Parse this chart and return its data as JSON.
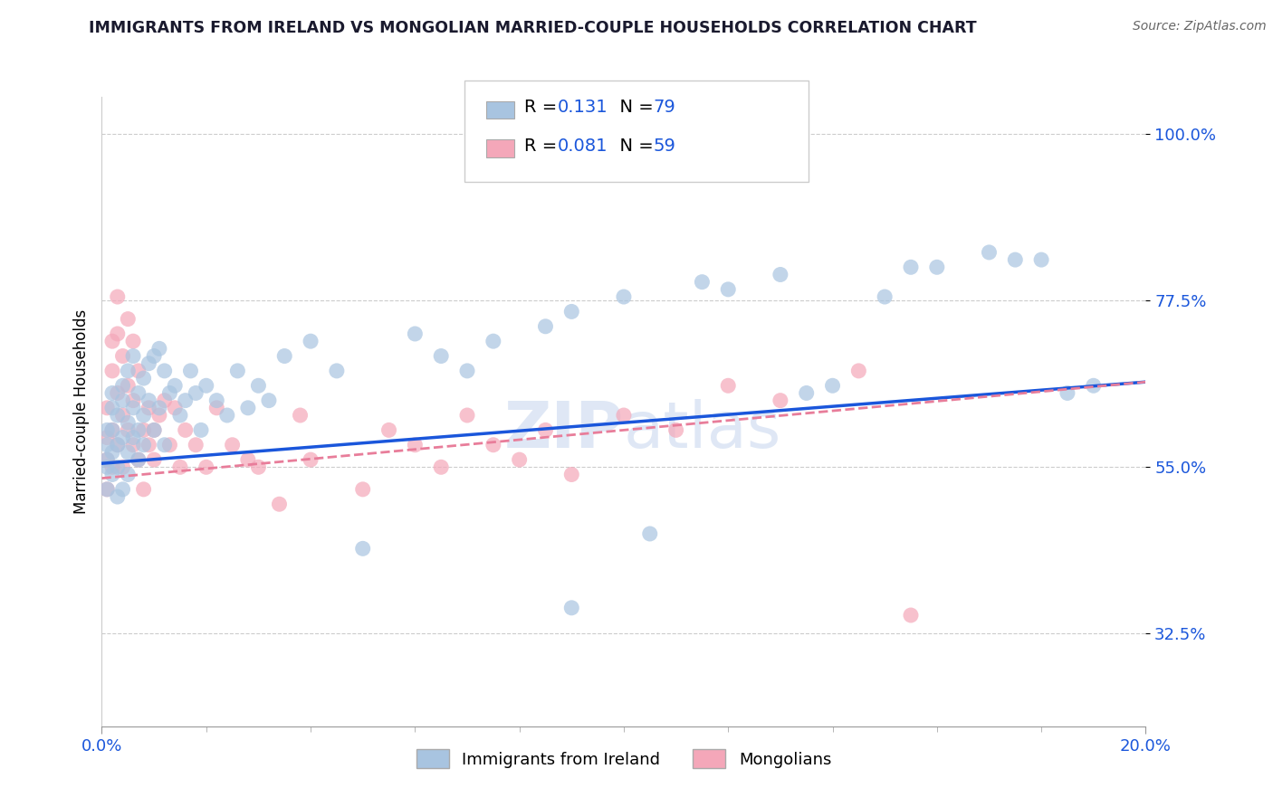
{
  "title": "IMMIGRANTS FROM IRELAND VS MONGOLIAN MARRIED-COUPLE HOUSEHOLDS CORRELATION CHART",
  "source": "Source: ZipAtlas.com",
  "ylabel": "Married-couple Households",
  "xlim": [
    0.0,
    0.2
  ],
  "ylim": [
    0.2,
    1.05
  ],
  "yticks": [
    0.325,
    0.55,
    0.775,
    1.0
  ],
  "ytick_labels": [
    "32.5%",
    "55.0%",
    "77.5%",
    "100.0%"
  ],
  "xticks": [
    0.0,
    0.2
  ],
  "xtick_labels": [
    "0.0%",
    "20.0%"
  ],
  "r_blue": 0.131,
  "n_blue": 79,
  "r_pink": 0.081,
  "n_pink": 59,
  "legend_labels": [
    "Immigrants from Ireland",
    "Mongolians"
  ],
  "scatter_blue": "#a8c4e0",
  "scatter_pink": "#f4a7b9",
  "line_blue": "#1a56db",
  "line_pink": "#e87d9a",
  "watermark": "ZIPAtlas",
  "blue_x": [
    0.001,
    0.001,
    0.001,
    0.001,
    0.001,
    0.002,
    0.002,
    0.002,
    0.002,
    0.002,
    0.003,
    0.003,
    0.003,
    0.003,
    0.004,
    0.004,
    0.004,
    0.004,
    0.005,
    0.005,
    0.005,
    0.005,
    0.006,
    0.006,
    0.006,
    0.007,
    0.007,
    0.007,
    0.008,
    0.008,
    0.008,
    0.009,
    0.009,
    0.01,
    0.01,
    0.011,
    0.011,
    0.012,
    0.012,
    0.013,
    0.014,
    0.015,
    0.016,
    0.017,
    0.018,
    0.019,
    0.02,
    0.022,
    0.024,
    0.026,
    0.028,
    0.03,
    0.032,
    0.035,
    0.04,
    0.045,
    0.05,
    0.06,
    0.065,
    0.07,
    0.075,
    0.085,
    0.09,
    0.1,
    0.115,
    0.135,
    0.14,
    0.155,
    0.17,
    0.18,
    0.09,
    0.105,
    0.12,
    0.13,
    0.15,
    0.16,
    0.175,
    0.185,
    0.19
  ],
  "blue_y": [
    0.56,
    0.6,
    0.52,
    0.55,
    0.58,
    0.63,
    0.57,
    0.6,
    0.54,
    0.65,
    0.62,
    0.58,
    0.55,
    0.51,
    0.64,
    0.59,
    0.66,
    0.52,
    0.61,
    0.57,
    0.68,
    0.54,
    0.63,
    0.59,
    0.7,
    0.65,
    0.6,
    0.56,
    0.67,
    0.62,
    0.58,
    0.69,
    0.64,
    0.7,
    0.6,
    0.71,
    0.63,
    0.68,
    0.58,
    0.65,
    0.66,
    0.62,
    0.64,
    0.68,
    0.65,
    0.6,
    0.66,
    0.64,
    0.62,
    0.68,
    0.63,
    0.66,
    0.64,
    0.7,
    0.72,
    0.68,
    0.44,
    0.73,
    0.7,
    0.68,
    0.72,
    0.74,
    0.76,
    0.78,
    0.8,
    0.65,
    0.66,
    0.82,
    0.84,
    0.83,
    0.36,
    0.46,
    0.79,
    0.81,
    0.78,
    0.82,
    0.83,
    0.65,
    0.66
  ],
  "pink_x": [
    0.001,
    0.001,
    0.001,
    0.001,
    0.002,
    0.002,
    0.002,
    0.002,
    0.003,
    0.003,
    0.003,
    0.003,
    0.004,
    0.004,
    0.004,
    0.005,
    0.005,
    0.005,
    0.006,
    0.006,
    0.006,
    0.007,
    0.007,
    0.008,
    0.008,
    0.009,
    0.009,
    0.01,
    0.01,
    0.011,
    0.012,
    0.013,
    0.014,
    0.015,
    0.016,
    0.018,
    0.02,
    0.022,
    0.025,
    0.028,
    0.03,
    0.034,
    0.038,
    0.04,
    0.05,
    0.055,
    0.06,
    0.065,
    0.07,
    0.075,
    0.08,
    0.085,
    0.09,
    0.1,
    0.11,
    0.12,
    0.13,
    0.145,
    0.155
  ],
  "pink_y": [
    0.56,
    0.59,
    0.52,
    0.63,
    0.68,
    0.72,
    0.6,
    0.55,
    0.65,
    0.73,
    0.58,
    0.78,
    0.62,
    0.7,
    0.55,
    0.66,
    0.75,
    0.6,
    0.58,
    0.64,
    0.72,
    0.56,
    0.68,
    0.6,
    0.52,
    0.63,
    0.58,
    0.6,
    0.56,
    0.62,
    0.64,
    0.58,
    0.63,
    0.55,
    0.6,
    0.58,
    0.55,
    0.63,
    0.58,
    0.56,
    0.55,
    0.5,
    0.62,
    0.56,
    0.52,
    0.6,
    0.58,
    0.55,
    0.62,
    0.58,
    0.56,
    0.6,
    0.54,
    0.62,
    0.6,
    0.66,
    0.64,
    0.68,
    0.35
  ],
  "blue_line_x0": 0.0,
  "blue_line_y0": 0.555,
  "blue_line_x1": 0.2,
  "blue_line_y1": 0.665,
  "pink_line_x0": 0.0,
  "pink_line_y0": 0.535,
  "pink_line_x1": 0.2,
  "pink_line_y1": 0.665
}
